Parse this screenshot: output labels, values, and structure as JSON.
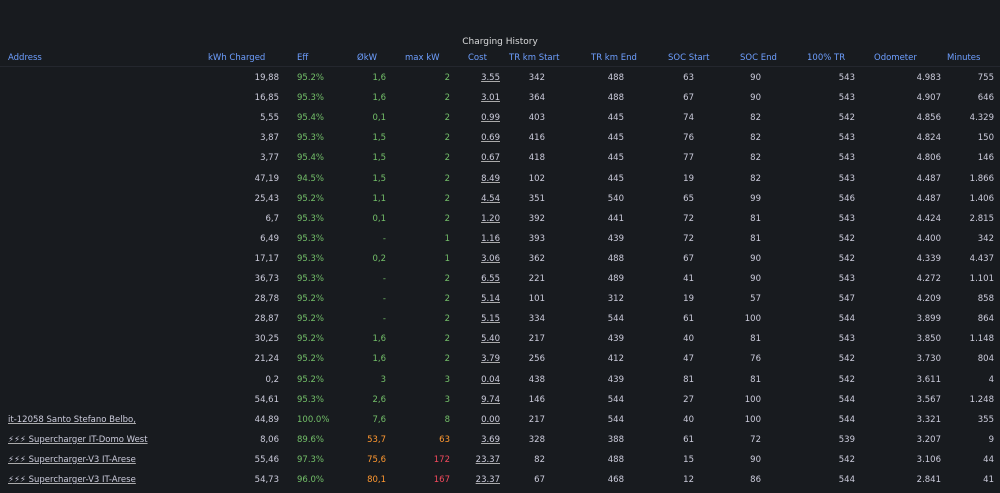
{
  "header": {
    "title": "Charging History"
  },
  "table": {
    "columns": [
      "Address",
      "kWh Charged",
      "Eff",
      "ØkW",
      "max kW",
      "Cost",
      "TR km Start",
      "TR km End",
      "SOC Start",
      "SOC End",
      "100% TR",
      "Odometer",
      "Minutes"
    ],
    "rows": [
      [
        null,
        "19,88",
        "95.2%",
        "1,6",
        "2",
        "3.55",
        "342",
        "488",
        "63",
        "90",
        "543",
        "4.983",
        "755"
      ],
      [
        null,
        "16,85",
        "95.3%",
        "1,6",
        "2",
        "3.01",
        "364",
        "488",
        "67",
        "90",
        "543",
        "4.907",
        "646"
      ],
      [
        null,
        "5,55",
        "95.4%",
        "0,1",
        "2",
        "0.99",
        "403",
        "445",
        "74",
        "82",
        "542",
        "4.856",
        "4.329"
      ],
      [
        null,
        "3,87",
        "95.3%",
        "1,5",
        "2",
        "0.69",
        "416",
        "445",
        "76",
        "82",
        "543",
        "4.824",
        "150"
      ],
      [
        null,
        "3,77",
        "95.4%",
        "1,5",
        "2",
        "0.67",
        "418",
        "445",
        "77",
        "82",
        "543",
        "4.806",
        "146"
      ],
      [
        null,
        "47,19",
        "94.5%",
        "1,5",
        "2",
        "8.49",
        "102",
        "445",
        "19",
        "82",
        "543",
        "4.487",
        "1.866"
      ],
      [
        null,
        "25,43",
        "95.2%",
        "1,1",
        "2",
        "4.54",
        "351",
        "540",
        "65",
        "99",
        "546",
        "4.487",
        "1.406"
      ],
      [
        null,
        "6,7",
        "95.3%",
        "0,1",
        "2",
        "1.20",
        "392",
        "441",
        "72",
        "81",
        "543",
        "4.424",
        "2.815"
      ],
      [
        null,
        "6,49",
        "95.3%",
        "-",
        "1",
        "1.16",
        "393",
        "439",
        "72",
        "81",
        "542",
        "4.400",
        "342"
      ],
      [
        null,
        "17,17",
        "95.3%",
        "0,2",
        "1",
        "3.06",
        "362",
        "488",
        "67",
        "90",
        "542",
        "4.339",
        "4.437"
      ],
      [
        null,
        "36,73",
        "95.3%",
        "-",
        "2",
        "6.55",
        "221",
        "489",
        "41",
        "90",
        "543",
        "4.272",
        "1.101"
      ],
      [
        null,
        "28,78",
        "95.2%",
        "-",
        "2",
        "5.14",
        "101",
        "312",
        "19",
        "57",
        "547",
        "4.209",
        "858"
      ],
      [
        null,
        "28,87",
        "95.2%",
        "-",
        "2",
        "5.15",
        "334",
        "544",
        "61",
        "100",
        "544",
        "3.899",
        "864"
      ],
      [
        null,
        "30,25",
        "95.2%",
        "1,6",
        "2",
        "5.40",
        "217",
        "439",
        "40",
        "81",
        "543",
        "3.850",
        "1.148"
      ],
      [
        null,
        "21,24",
        "95.2%",
        "1,6",
        "2",
        "3.79",
        "256",
        "412",
        "47",
        "76",
        "542",
        "3.730",
        "804"
      ],
      [
        null,
        "0,2",
        "95.2%",
        "3",
        "3",
        "0.04",
        "438",
        "439",
        "81",
        "81",
        "542",
        "3.611",
        "4"
      ],
      [
        null,
        "54,61",
        "95.3%",
        "2,6",
        "3",
        "9.74",
        "146",
        "544",
        "27",
        "100",
        "544",
        "3.567",
        "1.248"
      ],
      [
        "it-12058 Santo Stefano Belbo,",
        "44,89",
        "100.0%",
        "7,6",
        "8",
        "0.00",
        "217",
        "544",
        "40",
        "100",
        "544",
        "3.321",
        "355"
      ],
      [
        "⚡⚡⚡ Supercharger IT-Domo West",
        "8,06",
        "89.6%",
        "53,7",
        "63",
        "3.69",
        "328",
        "388",
        "61",
        "72",
        "539",
        "3.207",
        "9"
      ],
      [
        "⚡⚡⚡ Supercharger-V3 IT-Arese",
        "55,46",
        "97.3%",
        "75,6",
        "172",
        "23.37",
        "82",
        "488",
        "15",
        "90",
        "542",
        "3.106",
        "44"
      ],
      [
        "⚡⚡⚡ Supercharger-V3 IT-Arese",
        "54,73",
        "96.0%",
        "80,1",
        "167",
        "23.37",
        "67",
        "468",
        "12",
        "86",
        "544",
        "2.841",
        "41"
      ]
    ]
  }
}
